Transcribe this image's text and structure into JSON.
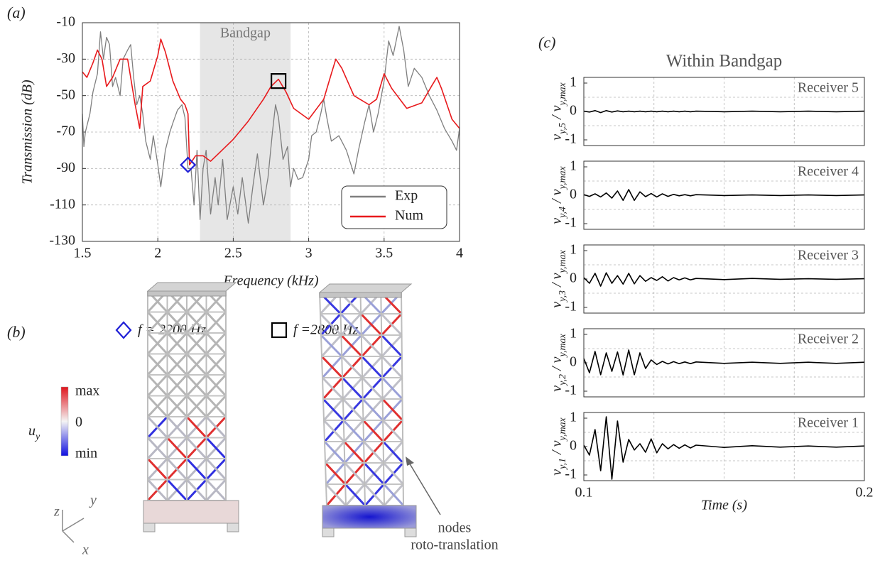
{
  "chart_data": [
    {
      "type": "line",
      "panel_label": "(a)",
      "xlabel": "Frequency (kHz)",
      "ylabel": "Transmission (dB)",
      "xlim": [
        1.5,
        4
      ],
      "xticks": [
        1.5,
        2,
        2.5,
        3,
        3.5,
        4
      ],
      "ylim": [
        -130,
        -10
      ],
      "yticks": [
        -130,
        -110,
        -90,
        -70,
        -50,
        -30,
        -10
      ],
      "grid": true,
      "legend": "lower right",
      "band": {
        "range": [
          2.28,
          2.88
        ],
        "label": "Bandgap",
        "color": "#e6e6e6"
      },
      "markers": [
        {
          "x": 2.2,
          "y": -88,
          "shape": "diamond",
          "color": "#1f1fd6"
        },
        {
          "x": 2.8,
          "y": -42,
          "shape": "square",
          "color": "#000000"
        }
      ],
      "series": [
        {
          "name": "Exp",
          "color": "#7f7f7f",
          "x": [
            1.5,
            1.51,
            1.52,
            1.55,
            1.57,
            1.6,
            1.62,
            1.64,
            1.66,
            1.68,
            1.7,
            1.72,
            1.75,
            1.77,
            1.8,
            1.82,
            1.84,
            1.86,
            1.88,
            1.9,
            1.92,
            1.95,
            1.97,
            2.0,
            2.02,
            2.05,
            2.08,
            2.1,
            2.13,
            2.16,
            2.18,
            2.2,
            2.22,
            2.24,
            2.26,
            2.28,
            2.3,
            2.32,
            2.35,
            2.38,
            2.4,
            2.43,
            2.46,
            2.5,
            2.53,
            2.56,
            2.6,
            2.63,
            2.66,
            2.7,
            2.73,
            2.76,
            2.78,
            2.8,
            2.83,
            2.86,
            2.88,
            2.9,
            2.93,
            2.96,
            3.0,
            3.02,
            3.05,
            3.08,
            3.1,
            3.12,
            3.15,
            3.2,
            3.25,
            3.3,
            3.33,
            3.37,
            3.4,
            3.43,
            3.46,
            3.5,
            3.53,
            3.56,
            3.6,
            3.63,
            3.66,
            3.7,
            3.75,
            3.8,
            3.85,
            3.9,
            3.95,
            3.98,
            4.0
          ],
          "values": [
            -60,
            -78,
            -70,
            -60,
            -48,
            -38,
            -15,
            -30,
            -18,
            -22,
            -45,
            -40,
            -50,
            -30,
            -25,
            -22,
            -40,
            -55,
            -50,
            -60,
            -75,
            -85,
            -72,
            -88,
            -100,
            -80,
            -70,
            -65,
            -58,
            -55,
            -62,
            -90,
            -90,
            -110,
            -80,
            -118,
            -90,
            -80,
            -115,
            -95,
            -110,
            -85,
            -118,
            -100,
            -115,
            -95,
            -120,
            -100,
            -82,
            -110,
            -95,
            -70,
            -55,
            -62,
            -85,
            -78,
            -100,
            -90,
            -96,
            -95,
            -85,
            -72,
            -70,
            -60,
            -52,
            -62,
            -75,
            -72,
            -80,
            -93,
            -80,
            -65,
            -55,
            -70,
            -60,
            -42,
            -20,
            -28,
            -12,
            -25,
            -45,
            -35,
            -40,
            -50,
            -58,
            -68,
            -75,
            -80,
            -68
          ]
        },
        {
          "name": "Num",
          "color": "#e8191c",
          "x": [
            1.5,
            1.53,
            1.57,
            1.6,
            1.63,
            1.66,
            1.7,
            1.75,
            1.8,
            1.85,
            1.88,
            1.9,
            1.95,
            2.0,
            2.02,
            2.05,
            2.1,
            2.15,
            2.18,
            2.2,
            2.21,
            2.25,
            2.3,
            2.35,
            2.4,
            2.5,
            2.6,
            2.7,
            2.75,
            2.8,
            2.85,
            2.9,
            3.0,
            3.1,
            3.15,
            3.18,
            3.22,
            3.3,
            3.4,
            3.45,
            3.5,
            3.55,
            3.65,
            3.75,
            3.82,
            3.85,
            3.88,
            3.95,
            4.0
          ],
          "values": [
            -37,
            -40,
            -32,
            -25,
            -30,
            -45,
            -40,
            -30,
            -30,
            -55,
            -68,
            -45,
            -42,
            -28,
            -19,
            -26,
            -42,
            -52,
            -55,
            -60,
            -88,
            -83,
            -83,
            -86,
            -82,
            -74,
            -64,
            -52,
            -45,
            -41,
            -48,
            -57,
            -63,
            -52,
            -38,
            -30,
            -35,
            -50,
            -55,
            -52,
            -38,
            -46,
            -57,
            -54,
            -44,
            -40,
            -46,
            -63,
            -68
          ]
        }
      ]
    },
    {
      "type": "line",
      "panel_label": "(c)",
      "title": "Within Bandgap",
      "annotation": "Receiver 5",
      "ylabel_parts": [
        "v",
        "y,5",
        " / v",
        "y,max"
      ],
      "xlim": [
        0.1,
        0.2
      ],
      "xgrid": [
        0.125,
        0.15,
        0.175
      ],
      "ylim": [
        -1.2,
        1.2
      ],
      "yticks": [
        -1,
        0,
        1
      ],
      "ygrid": [
        -0.5,
        0.5
      ],
      "color": "#000000",
      "x": [
        0.1,
        0.102,
        0.104,
        0.106,
        0.108,
        0.11,
        0.112,
        0.114,
        0.116,
        0.118,
        0.12,
        0.122,
        0.124,
        0.126,
        0.128,
        0.13,
        0.132,
        0.134,
        0.136,
        0.138,
        0.14,
        0.15,
        0.16,
        0.17,
        0.18,
        0.19,
        0.2
      ],
      "values": [
        0.01,
        -0.02,
        0.03,
        -0.04,
        0.03,
        -0.02,
        0.02,
        -0.01,
        0.01,
        -0.01,
        0.01,
        -0.01,
        0.01,
        -0.01,
        0.01,
        -0.01,
        0.01,
        -0.01,
        0.01,
        -0.01,
        0.01,
        -0.01,
        0.01,
        -0.01,
        0.01,
        -0.01,
        0.01
      ]
    },
    {
      "type": "line",
      "annotation": "Receiver 4",
      "ylabel_parts": [
        "v",
        "y,4",
        " / v",
        "y,max"
      ],
      "xlim": [
        0.1,
        0.2
      ],
      "xgrid": [
        0.125,
        0.15,
        0.175
      ],
      "ylim": [
        -1.2,
        1.2
      ],
      "yticks": [
        -1,
        0,
        1
      ],
      "ygrid": [
        -0.5,
        0.5
      ],
      "color": "#000000",
      "x": [
        0.1,
        0.102,
        0.104,
        0.106,
        0.108,
        0.11,
        0.112,
        0.114,
        0.116,
        0.118,
        0.12,
        0.122,
        0.124,
        0.126,
        0.128,
        0.13,
        0.132,
        0.134,
        0.136,
        0.138,
        0.14,
        0.15,
        0.16,
        0.17,
        0.18,
        0.19,
        0.2
      ],
      "values": [
        0.02,
        -0.04,
        0.05,
        -0.06,
        0.08,
        -0.1,
        0.15,
        -0.18,
        0.2,
        -0.18,
        0.12,
        -0.05,
        0.06,
        -0.06,
        0.05,
        -0.04,
        0.03,
        -0.02,
        0.02,
        -0.02,
        0.02,
        -0.01,
        0.01,
        -0.01,
        0.01,
        -0.01,
        0.01
      ]
    },
    {
      "type": "line",
      "annotation": "Receiver 3",
      "ylabel_parts": [
        "v",
        "y,3",
        " / v",
        "y,max"
      ],
      "xlim": [
        0.1,
        0.2
      ],
      "xgrid": [
        0.125,
        0.15,
        0.175
      ],
      "ylim": [
        -1.2,
        1.2
      ],
      "yticks": [
        -1,
        0,
        1
      ],
      "ygrid": [
        -0.5,
        0.5
      ],
      "color": "#000000",
      "x": [
        0.1,
        0.102,
        0.104,
        0.106,
        0.108,
        0.11,
        0.112,
        0.114,
        0.116,
        0.118,
        0.12,
        0.122,
        0.124,
        0.126,
        0.128,
        0.13,
        0.132,
        0.134,
        0.136,
        0.138,
        0.14,
        0.15,
        0.16,
        0.17,
        0.18,
        0.19,
        0.2
      ],
      "values": [
        0.05,
        -0.15,
        0.2,
        -0.25,
        0.22,
        -0.15,
        0.12,
        -0.18,
        0.2,
        -0.17,
        0.12,
        -0.08,
        0.05,
        -0.05,
        0.08,
        -0.07,
        0.05,
        -0.03,
        0.04,
        -0.03,
        0.02,
        -0.02,
        0.02,
        -0.01,
        0.01,
        -0.01,
        0.01
      ]
    },
    {
      "type": "line",
      "annotation": "Receiver 2",
      "ylabel_parts": [
        "v",
        "y,2",
        " / v",
        "y,max"
      ],
      "xlim": [
        0.1,
        0.2
      ],
      "xgrid": [
        0.125,
        0.15,
        0.175
      ],
      "ylim": [
        -1.2,
        1.2
      ],
      "yticks": [
        -1,
        0,
        1
      ],
      "ygrid": [
        -0.5,
        0.5
      ],
      "color": "#000000",
      "x": [
        0.1,
        0.102,
        0.104,
        0.106,
        0.108,
        0.11,
        0.112,
        0.114,
        0.116,
        0.118,
        0.12,
        0.122,
        0.124,
        0.126,
        0.128,
        0.13,
        0.132,
        0.134,
        0.136,
        0.138,
        0.14,
        0.15,
        0.16,
        0.17,
        0.18,
        0.19,
        0.2
      ],
      "values": [
        0.15,
        -0.35,
        0.4,
        -0.42,
        0.35,
        -0.3,
        0.38,
        -0.43,
        0.45,
        -0.42,
        0.35,
        -0.2,
        0.1,
        -0.06,
        0.05,
        -0.04,
        0.04,
        -0.03,
        0.03,
        -0.03,
        0.03,
        -0.02,
        0.02,
        -0.02,
        0.02,
        -0.02,
        0.02
      ]
    },
    {
      "type": "line",
      "annotation": "Receiver 1",
      "ylabel_parts": [
        "v",
        "y,1",
        " / v",
        "y,max"
      ],
      "xlabel": "Time (s)",
      "xlim": [
        0.1,
        0.2
      ],
      "xticks": [
        0.1,
        0.2
      ],
      "xgrid": [
        0.125,
        0.15,
        0.175
      ],
      "ylim": [
        -1.2,
        1.2
      ],
      "yticks": [
        -1,
        0,
        1
      ],
      "ygrid": [
        -0.5,
        0.5
      ],
      "color": "#000000",
      "x": [
        0.1,
        0.102,
        0.104,
        0.106,
        0.108,
        0.11,
        0.112,
        0.114,
        0.116,
        0.118,
        0.12,
        0.122,
        0.124,
        0.126,
        0.128,
        0.13,
        0.132,
        0.134,
        0.136,
        0.138,
        0.14,
        0.15,
        0.16,
        0.17,
        0.18,
        0.19,
        0.2
      ],
      "values": [
        0.05,
        -0.3,
        0.6,
        -0.85,
        1.05,
        -1.15,
        0.9,
        -0.55,
        0.25,
        -0.12,
        0.1,
        -0.2,
        0.27,
        -0.22,
        0.1,
        -0.08,
        0.07,
        -0.06,
        0.06,
        -0.05,
        0.05,
        -0.03,
        0.03,
        -0.02,
        0.02,
        -0.02,
        0.02
      ]
    }
  ],
  "panel_b": {
    "label": "(b)",
    "modes": [
      "f = 2200 Hz",
      "f =2800 Hz"
    ],
    "colorbar": {
      "labels": [
        "max",
        "0",
        "min"
      ],
      "symbol": [
        "u",
        "y"
      ]
    },
    "axes": [
      "z",
      "y",
      "x"
    ],
    "annotation": [
      "nodes",
      "roto-translation"
    ]
  }
}
